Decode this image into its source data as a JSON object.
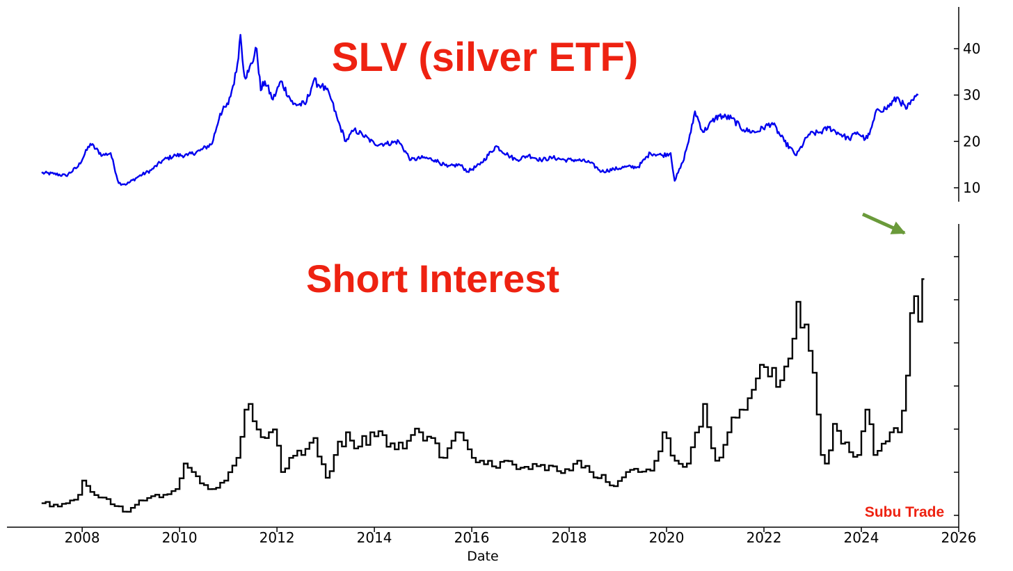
{
  "colors": {
    "slv_line": "#0000ee",
    "si_line": "#000000",
    "title": "#ee2211",
    "arrow": "#6a9a3a"
  },
  "watermark": "Subu Trade",
  "chart_data": [
    {
      "type": "line",
      "title": "SLV (silver ETF)",
      "y_axis_side": "right",
      "yticks": [
        10,
        20,
        30,
        40
      ],
      "ylim": [
        7,
        49
      ],
      "xlim": [
        "2006-06-15",
        "2026-01-01"
      ],
      "series": [
        {
          "x": [
            "2007-03",
            "2007-06",
            "2007-09",
            "2007-12",
            "2008-03",
            "2008-06",
            "2008-08",
            "2008-10",
            "2008-12",
            "2009-03",
            "2009-06",
            "2009-09",
            "2009-12",
            "2010-03",
            "2010-06",
            "2010-09",
            "2010-11",
            "2011-01",
            "2011-03",
            "2011-04",
            "2011-05",
            "2011-06",
            "2011-08",
            "2011-09",
            "2011-10",
            "2011-12",
            "2012-02",
            "2012-05",
            "2012-08",
            "2012-10",
            "2012-12",
            "2013-02",
            "2013-04",
            "2013-06",
            "2013-08",
            "2013-10",
            "2014-01",
            "2014-04",
            "2014-07",
            "2014-10",
            "2015-01",
            "2015-04",
            "2015-07",
            "2015-10",
            "2015-12",
            "2016-03",
            "2016-07",
            "2016-10",
            "2016-12",
            "2017-03",
            "2017-06",
            "2017-09",
            "2017-12",
            "2018-03",
            "2018-06",
            "2018-09",
            "2018-12",
            "2019-03",
            "2019-06",
            "2019-09",
            "2019-12",
            "2020-02",
            "2020-03",
            "2020-05",
            "2020-07",
            "2020-08",
            "2020-10",
            "2021-01",
            "2021-02",
            "2021-05",
            "2021-08",
            "2021-11",
            "2022-03",
            "2022-06",
            "2022-09",
            "2022-12",
            "2023-03",
            "2023-05",
            "2023-08",
            "2023-10",
            "2023-12",
            "2024-02",
            "2024-03",
            "2024-05",
            "2024-07",
            "2024-10",
            "2024-12",
            "2025-01",
            "2025-03"
          ],
          "values": [
            13.2,
            13.0,
            12.6,
            14.6,
            19.5,
            17.0,
            17.5,
            11.0,
            10.8,
            12.5,
            13.8,
            16.0,
            17.0,
            17.0,
            18.0,
            19.5,
            26.0,
            28.0,
            35.0,
            43.0,
            34.0,
            35.0,
            40.0,
            31.0,
            33.0,
            29.0,
            33.0,
            28.0,
            28.0,
            33.0,
            32.0,
            30.0,
            24.5,
            20.0,
            22.5,
            21.5,
            19.5,
            19.5,
            20.0,
            16.0,
            16.5,
            16.0,
            14.5,
            15.0,
            13.5,
            15.0,
            19.0,
            17.0,
            16.0,
            17.0,
            16.0,
            16.5,
            16.0,
            16.0,
            15.5,
            13.5,
            14.0,
            14.5,
            14.5,
            17.5,
            17.0,
            17.5,
            11.5,
            15.5,
            22.0,
            26.5,
            22.0,
            25.0,
            25.5,
            25.0,
            22.5,
            22.0,
            24.0,
            20.0,
            17.0,
            21.5,
            22.0,
            23.0,
            21.5,
            20.5,
            22.0,
            20.5,
            21.5,
            27.0,
            27.0,
            29.5,
            27.0,
            28.0,
            30.0
          ]
        }
      ]
    },
    {
      "type": "line",
      "title": "Short Interest",
      "xlabel": "Date",
      "xticks": [
        "2008",
        "2010",
        "2012",
        "2014",
        "2016",
        "2018",
        "2020",
        "2022",
        "2024",
        "2026"
      ],
      "xlim": [
        "2006-06-15",
        "2026-01-01"
      ],
      "ylim": [
        0,
        100
      ],
      "series": [
        {
          "x": [
            "2007-03",
            "2007-06",
            "2007-09",
            "2007-12",
            "2008-01",
            "2008-03",
            "2008-06",
            "2008-09",
            "2008-12",
            "2009-03",
            "2009-06",
            "2009-09",
            "2009-12",
            "2010-02",
            "2010-04",
            "2010-06",
            "2010-09",
            "2010-12",
            "2011-03",
            "2011-05",
            "2011-06",
            "2011-08",
            "2011-10",
            "2011-12",
            "2012-02",
            "2012-04",
            "2012-07",
            "2012-10",
            "2013-01",
            "2013-03",
            "2013-06",
            "2013-09",
            "2013-12",
            "2014-03",
            "2014-06",
            "2014-09",
            "2014-12",
            "2015-03",
            "2015-06",
            "2015-09",
            "2015-12",
            "2016-03",
            "2016-06",
            "2016-09",
            "2016-12",
            "2017-03",
            "2017-06",
            "2017-09",
            "2017-12",
            "2018-03",
            "2018-06",
            "2018-09",
            "2018-12",
            "2019-03",
            "2019-06",
            "2019-09",
            "2019-12",
            "2020-03",
            "2020-06",
            "2020-09",
            "2020-10",
            "2021-01",
            "2021-04",
            "2021-07",
            "2021-10",
            "2022-01",
            "2022-04",
            "2022-07",
            "2022-09",
            "2022-11",
            "2023-01",
            "2023-03",
            "2023-04",
            "2023-06",
            "2023-08",
            "2023-10",
            "2023-12",
            "2024-02",
            "2024-04",
            "2024-06",
            "2024-08",
            "2024-10",
            "2024-12",
            "2025-01",
            "2025-02",
            "2025-03",
            "2025-04"
          ],
          "values": [
            5.0,
            4.5,
            5.0,
            8.0,
            13.0,
            9.0,
            7.0,
            4.0,
            2.0,
            6.0,
            7.5,
            8.0,
            10.0,
            19.0,
            16.0,
            12.0,
            10.0,
            13.0,
            21.0,
            38.0,
            40.0,
            31.0,
            28.0,
            31.0,
            16.0,
            21.0,
            22.0,
            28.0,
            14.0,
            22.0,
            30.0,
            25.0,
            30.0,
            29.0,
            24.0,
            27.0,
            30.0,
            28.0,
            21.0,
            30.0,
            24.0,
            20.0,
            18.0,
            20.0,
            17.0,
            17.0,
            18.5,
            18.0,
            17.0,
            20.0,
            16.0,
            15.0,
            11.0,
            16.0,
            16.0,
            16.5,
            30.0,
            20.0,
            19.0,
            32.0,
            40.0,
            20.0,
            30.0,
            38.0,
            45.0,
            53.0,
            46.0,
            56.0,
            76.0,
            68.0,
            51.0,
            22.0,
            19.0,
            33.0,
            26.0,
            23.0,
            22.0,
            38.0,
            22.0,
            26.0,
            30.0,
            30.0,
            50.0,
            72.0,
            78.0,
            69.0,
            84.0
          ]
        }
      ]
    }
  ]
}
